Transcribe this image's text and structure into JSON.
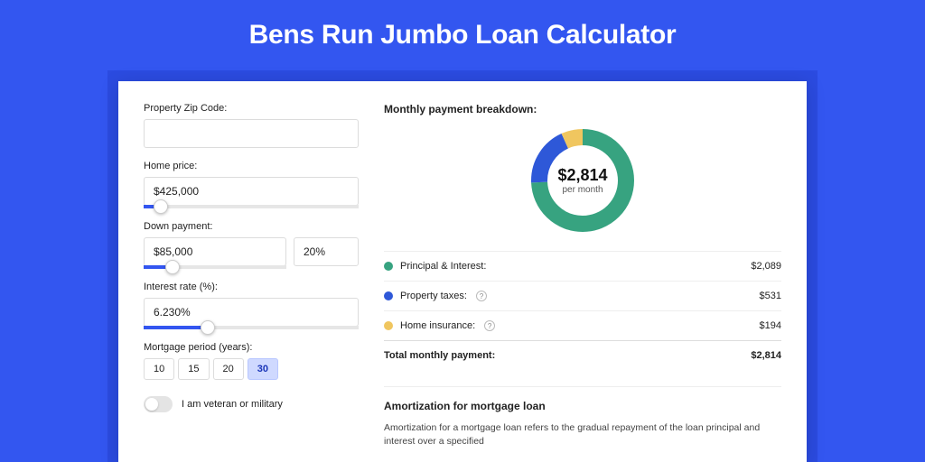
{
  "page": {
    "title": "Bens Run Jumbo Loan Calculator",
    "outer_bg": "#3356f0",
    "inner_bg": "#2b4be0",
    "card_bg": "#ffffff",
    "title_color": "#ffffff"
  },
  "form": {
    "zip": {
      "label": "Property Zip Code:",
      "value": ""
    },
    "home_price": {
      "label": "Home price:",
      "value": "$425,000",
      "slider_pct": 8
    },
    "down_payment": {
      "label": "Down payment:",
      "amount": "$85,000",
      "percent": "20%",
      "slider_pct": 20
    },
    "interest_rate": {
      "label": "Interest rate (%):",
      "value": "6.230%",
      "slider_pct": 30
    },
    "mortgage_period": {
      "label": "Mortgage period (years):",
      "options": [
        {
          "label": "10",
          "active": false
        },
        {
          "label": "15",
          "active": false
        },
        {
          "label": "20",
          "active": false
        },
        {
          "label": "30",
          "active": true
        }
      ]
    },
    "veteran_toggle": {
      "label": "I am veteran or military",
      "on": false
    }
  },
  "breakdown": {
    "title": "Monthly payment breakdown:",
    "donut": {
      "value": "$2,814",
      "sub": "per month",
      "segments": [
        {
          "name": "principal_interest",
          "pct": 74.2,
          "color": "#37a380"
        },
        {
          "name": "property_taxes",
          "pct": 18.9,
          "color": "#2e58d8"
        },
        {
          "name": "home_insurance",
          "pct": 6.9,
          "color": "#f0c65f"
        }
      ],
      "stroke_width": 18
    },
    "rows": [
      {
        "color": "#37a380",
        "label": "Principal & Interest:",
        "info": false,
        "value": "$2,089"
      },
      {
        "color": "#2e58d8",
        "label": "Property taxes:",
        "info": true,
        "value": "$531"
      },
      {
        "color": "#f0c65f",
        "label": "Home insurance:",
        "info": true,
        "value": "$194"
      }
    ],
    "total": {
      "label": "Total monthly payment:",
      "value": "$2,814"
    }
  },
  "amortization": {
    "title": "Amortization for mortgage loan",
    "text": "Amortization for a mortgage loan refers to the gradual repayment of the loan principal and interest over a specified"
  }
}
